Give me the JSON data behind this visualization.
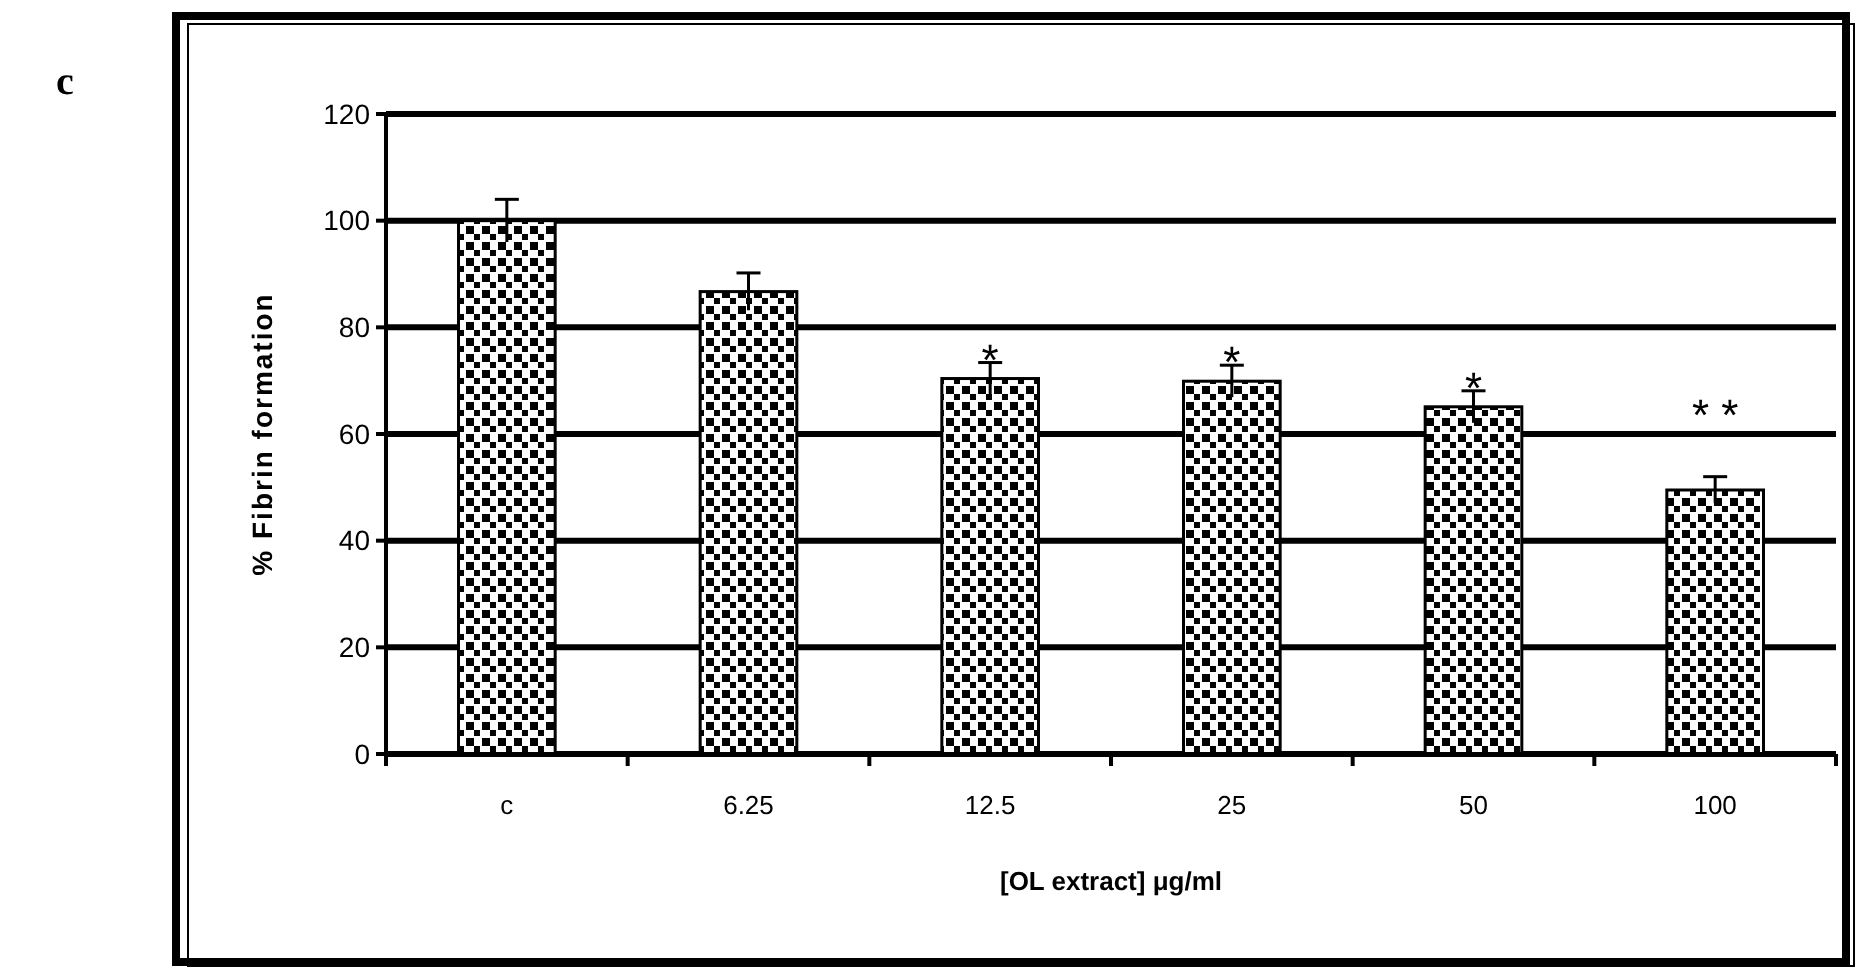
{
  "chart_data": {
    "type": "bar",
    "xlabel": "[OL extract] μg/ml",
    "ylabel": "% Fibrin formation",
    "categories": [
      "c",
      "6.25",
      "12.5",
      "25",
      "50",
      "100"
    ],
    "values": [
      100,
      86.7,
      70.4,
      69.9,
      65.1,
      49.5
    ],
    "errors": [
      4,
      3.5,
      3,
      3,
      3,
      2.5
    ],
    "color": "#000000",
    "ylim": [
      0,
      120
    ],
    "yticks": [
      0,
      20,
      40,
      60,
      80,
      100,
      120
    ],
    "grid": "y",
    "annotations": [
      "c",
      "*",
      "*",
      "*",
      "* *"
    ]
  }
}
